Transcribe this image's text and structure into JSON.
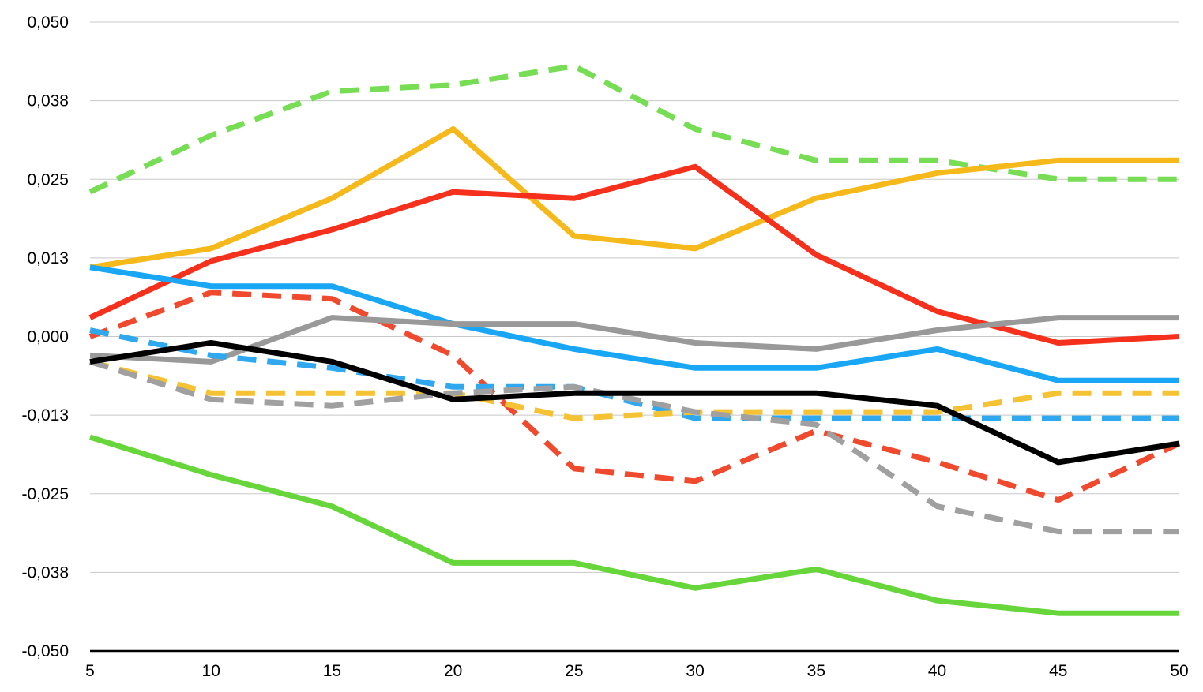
{
  "chart_data": {
    "type": "line",
    "title": "",
    "xlabel": "",
    "ylabel": "",
    "x": [
      5,
      10,
      15,
      20,
      25,
      30,
      35,
      40,
      45,
      50
    ],
    "x_tick_labels": [
      "5",
      "10",
      "15",
      "20",
      "25",
      "30",
      "35",
      "40",
      "45",
      "50"
    ],
    "ylim": [
      -0.05,
      0.05
    ],
    "y_ticks": [
      0.05,
      0.0375,
      0.025,
      0.0125,
      0,
      -0.0125,
      -0.025,
      -0.0375,
      -0.05
    ],
    "y_tick_labels": [
      "0,050",
      "0,038",
      "0,025",
      "0,013",
      "0,000",
      "-0,013",
      "-0,025",
      "-0,038",
      "-0,050"
    ],
    "grid": true,
    "legend": "none",
    "series": [
      {
        "name": "green-dashed",
        "color": "#77dd55",
        "dashed": true,
        "values": [
          0.023,
          0.032,
          0.039,
          0.04,
          0.043,
          0.033,
          0.028,
          0.028,
          0.025,
          0.025
        ]
      },
      {
        "name": "yellow-solid",
        "color": "#f6b91c",
        "dashed": false,
        "values": [
          0.011,
          0.014,
          0.022,
          0.033,
          0.016,
          0.014,
          0.022,
          0.026,
          0.028,
          0.028
        ]
      },
      {
        "name": "red-solid",
        "color": "#f5301c",
        "dashed": false,
        "values": [
          0.003,
          0.012,
          0.017,
          0.023,
          0.022,
          0.027,
          0.013,
          0.004,
          -0.001,
          0.0
        ]
      },
      {
        "name": "blue-solid",
        "color": "#19a6f5",
        "dashed": false,
        "values": [
          0.011,
          0.008,
          0.008,
          0.002,
          -0.002,
          -0.005,
          -0.005,
          -0.002,
          -0.007,
          -0.007
        ]
      },
      {
        "name": "red-dashed",
        "color": "#f04a2e",
        "dashed": true,
        "values": [
          0.0,
          0.007,
          0.006,
          -0.003,
          -0.021,
          -0.023,
          -0.015,
          -0.02,
          -0.026,
          -0.017
        ]
      },
      {
        "name": "gray-solid",
        "color": "#999999",
        "dashed": false,
        "values": [
          -0.003,
          -0.004,
          0.003,
          0.002,
          0.002,
          -0.001,
          -0.002,
          0.001,
          0.003,
          0.003
        ]
      },
      {
        "name": "blue-dashed",
        "color": "#2fa8f0",
        "dashed": true,
        "values": [
          0.001,
          -0.003,
          -0.005,
          -0.008,
          -0.008,
          -0.013,
          -0.013,
          -0.013,
          -0.013,
          -0.013
        ]
      },
      {
        "name": "yellow-dashed",
        "color": "#f5c233",
        "dashed": true,
        "values": [
          -0.004,
          -0.009,
          -0.009,
          -0.009,
          -0.013,
          -0.012,
          -0.012,
          -0.012,
          -0.009,
          -0.009
        ]
      },
      {
        "name": "gray-dashed",
        "color": "#a0a0a0",
        "dashed": true,
        "values": [
          -0.004,
          -0.01,
          -0.011,
          -0.009,
          -0.008,
          -0.012,
          -0.014,
          -0.027,
          -0.031,
          -0.031
        ]
      },
      {
        "name": "black-solid",
        "color": "#000000",
        "dashed": false,
        "values": [
          -0.004,
          -0.001,
          -0.004,
          -0.01,
          -0.009,
          -0.009,
          -0.009,
          -0.011,
          -0.02,
          -0.017
        ]
      },
      {
        "name": "green-solid",
        "color": "#66d63a",
        "dashed": false,
        "values": [
          -0.016,
          -0.022,
          -0.027,
          -0.036,
          -0.036,
          -0.04,
          -0.037,
          -0.042,
          -0.044,
          -0.044
        ]
      }
    ]
  }
}
